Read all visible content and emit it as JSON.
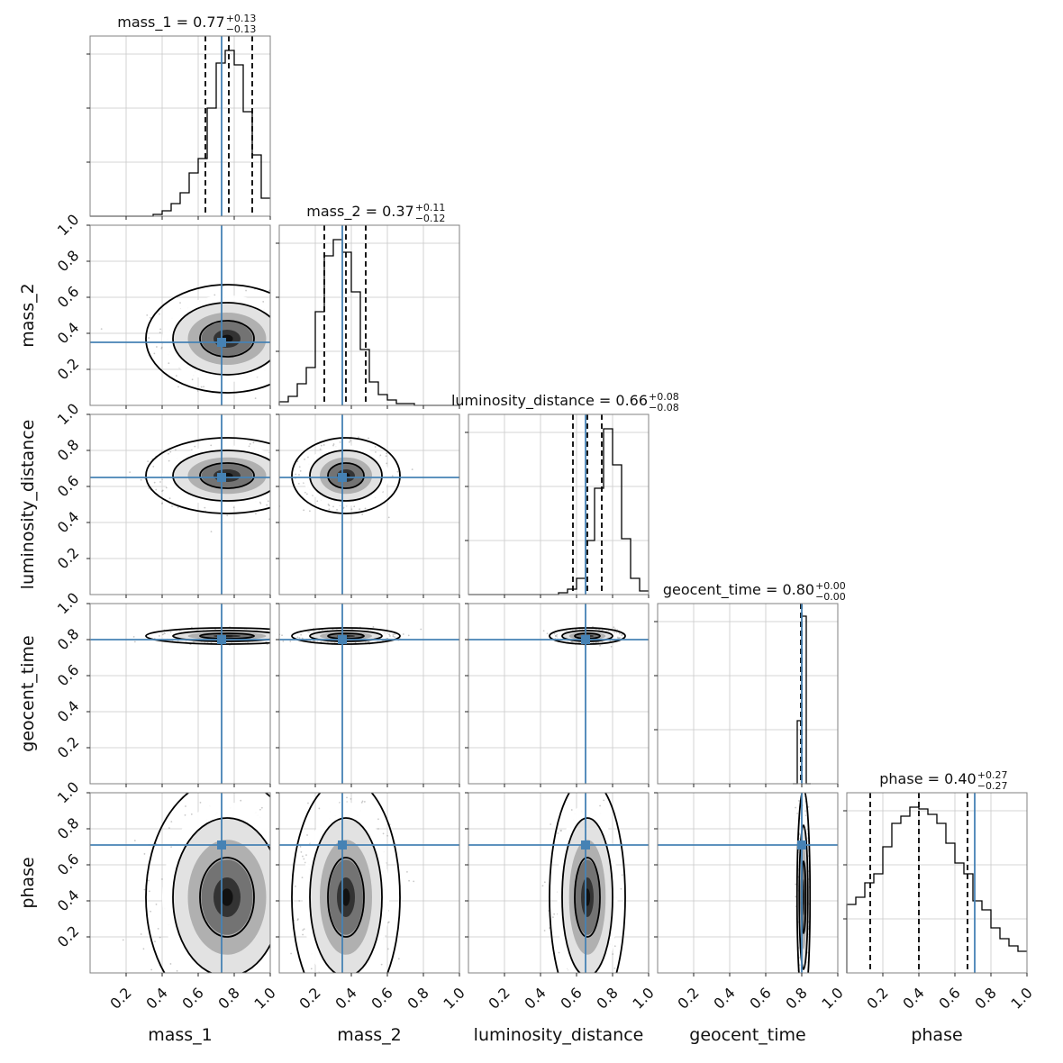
{
  "colors": {
    "truth": "#4682b4",
    "hist": "#000000",
    "grid": "#c8c8c8",
    "frame": "#808080"
  },
  "chart_data": {
    "type": "corner",
    "parameters": [
      "mass_1",
      "mass_2",
      "luminosity_distance",
      "geocent_time",
      "phase"
    ],
    "titles": [
      {
        "param": "mass_1",
        "text": "mass_1 = 0.77",
        "sup": "+0.13",
        "sub": "−0.13"
      },
      {
        "param": "mass_2",
        "text": "mass_2 = 0.37",
        "sup": "+0.11",
        "sub": "−0.12"
      },
      {
        "param": "luminosity_distance",
        "text": "luminosity_distance = 0.66",
        "sup": "+0.08",
        "sub": "−0.08"
      },
      {
        "param": "geocent_time",
        "text": "geocent_time = 0.80",
        "sup": "+0.00",
        "sub": "−0.00"
      },
      {
        "param": "phase",
        "text": "phase = 0.40",
        "sup": "+0.27",
        "sub": "−0.27"
      }
    ],
    "axis_range": [
      0,
      1
    ],
    "tick_labels": [
      "0.2",
      "0.4",
      "0.6",
      "0.8",
      "1.0"
    ],
    "truths": {
      "mass_1": 0.73,
      "mass_2": 0.35,
      "luminosity_distance": 0.65,
      "geocent_time": 0.8,
      "phase": 0.71
    },
    "quantiles": {
      "mass_1": [
        0.64,
        0.77,
        0.9
      ],
      "mass_2": [
        0.25,
        0.37,
        0.48
      ],
      "luminosity_distance": [
        0.58,
        0.66,
        0.74
      ],
      "geocent_time": [
        0.795,
        0.8,
        0.8
      ],
      "phase": [
        0.13,
        0.4,
        0.67
      ]
    },
    "histograms": {
      "mass_1": {
        "bins": [
          0.0,
          0.05,
          0.1,
          0.15,
          0.2,
          0.25,
          0.3,
          0.35,
          0.4,
          0.45,
          0.5,
          0.55,
          0.6,
          0.65,
          0.7,
          0.75,
          0.8,
          0.85,
          0.9,
          0.95,
          1.0
        ],
        "counts": [
          0,
          0,
          0,
          0,
          0,
          0,
          0,
          0.01,
          0.03,
          0.07,
          0.13,
          0.24,
          0.32,
          0.6,
          0.85,
          0.92,
          0.84,
          0.58,
          0.34,
          0.1
        ]
      },
      "mass_2": {
        "bins": [
          0.0,
          0.05,
          0.1,
          0.15,
          0.2,
          0.25,
          0.3,
          0.35,
          0.4,
          0.45,
          0.5,
          0.55,
          0.6,
          0.65,
          0.7,
          0.75,
          0.8,
          0.85,
          0.9,
          0.95,
          1.0
        ],
        "counts": [
          0.02,
          0.05,
          0.12,
          0.21,
          0.52,
          0.83,
          0.92,
          0.85,
          0.63,
          0.31,
          0.13,
          0.06,
          0.03,
          0.01,
          0.01,
          0,
          0,
          0,
          0,
          0
        ]
      },
      "luminosity_distance": {
        "bins": [
          0.0,
          0.05,
          0.1,
          0.15,
          0.2,
          0.25,
          0.3,
          0.35,
          0.4,
          0.45,
          0.5,
          0.55,
          0.6,
          0.65,
          0.7,
          0.75,
          0.8,
          0.85,
          0.9,
          0.95,
          1.0
        ],
        "counts": [
          0,
          0,
          0,
          0,
          0,
          0,
          0,
          0,
          0,
          0,
          0.01,
          0.03,
          0.09,
          0.3,
          0.59,
          0.92,
          0.72,
          0.31,
          0.09,
          0.02
        ]
      },
      "geocent_time": {
        "bins": [
          0.75,
          0.775,
          0.8,
          0.825,
          0.85
        ],
        "counts": [
          0,
          0.35,
          0.93,
          0
        ]
      },
      "phase": {
        "bins": [
          0.0,
          0.05,
          0.1,
          0.15,
          0.2,
          0.25,
          0.3,
          0.35,
          0.4,
          0.45,
          0.5,
          0.55,
          0.6,
          0.65,
          0.7,
          0.75,
          0.8,
          0.85,
          0.9,
          0.95,
          1.0
        ],
        "counts": [
          0.38,
          0.42,
          0.5,
          0.55,
          0.7,
          0.83,
          0.87,
          0.92,
          0.91,
          0.88,
          0.83,
          0.72,
          0.61,
          0.55,
          0.4,
          0.35,
          0.25,
          0.19,
          0.15,
          0.12
        ]
      }
    },
    "posterior_2d": [
      {
        "row": "mass_2",
        "col": "mass_1",
        "mean": [
          0.76,
          0.37
        ],
        "sd": [
          0.15,
          0.1
        ]
      },
      {
        "row": "luminosity_distance",
        "col": "mass_1",
        "mean": [
          0.76,
          0.66
        ],
        "sd": [
          0.15,
          0.07
        ]
      },
      {
        "row": "luminosity_distance",
        "col": "mass_2",
        "mean": [
          0.37,
          0.66
        ],
        "sd": [
          0.1,
          0.07
        ]
      },
      {
        "row": "geocent_time",
        "col": "mass_1",
        "mean": [
          0.76,
          0.82
        ],
        "sd": [
          0.15,
          0.015
        ]
      },
      {
        "row": "geocent_time",
        "col": "mass_2",
        "mean": [
          0.37,
          0.82
        ],
        "sd": [
          0.1,
          0.015
        ]
      },
      {
        "row": "geocent_time",
        "col": "luminosity_distance",
        "mean": [
          0.66,
          0.82
        ],
        "sd": [
          0.07,
          0.015
        ]
      },
      {
        "row": "phase",
        "col": "mass_1",
        "mean": [
          0.76,
          0.42
        ],
        "sd": [
          0.15,
          0.22
        ]
      },
      {
        "row": "phase",
        "col": "mass_2",
        "mean": [
          0.37,
          0.42
        ],
        "sd": [
          0.1,
          0.22
        ]
      },
      {
        "row": "phase",
        "col": "luminosity_distance",
        "mean": [
          0.66,
          0.42
        ],
        "sd": [
          0.07,
          0.22
        ]
      },
      {
        "row": "phase",
        "col": "geocent_time",
        "mean": [
          0.81,
          0.42
        ],
        "sd": [
          0.012,
          0.2
        ]
      }
    ],
    "contour_levels": [
      0.393,
      0.865,
      0.989
    ],
    "grid": true,
    "truth_color": "#4682b4"
  }
}
